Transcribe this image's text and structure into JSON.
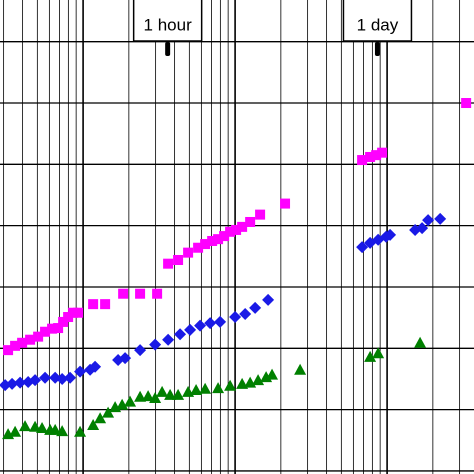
{
  "chart_data": {
    "type": "scatter",
    "xscale": "log",
    "grid": true,
    "xlim": [
      284,
      373000
    ],
    "xticks": [
      300,
      400,
      500,
      600,
      700,
      800,
      900,
      1000,
      2000,
      3000,
      4000,
      5000,
      6000,
      7000,
      8000,
      9000,
      10000,
      20000,
      30000,
      40000,
      50000,
      60000,
      70000,
      80000,
      90000,
      100000,
      200000,
      300000
    ],
    "ylim": [
      -0.05,
      7.68
    ],
    "yticks": [
      0,
      1,
      2,
      3,
      4,
      5,
      6,
      7
    ],
    "annotations": [
      {
        "text": "1 hour",
        "x": 3600
      },
      {
        "text": "1 day",
        "x": 86400
      }
    ],
    "series": [
      {
        "color": "#ff00ff",
        "marker": "square",
        "x": [
          321,
          357,
          397,
          448,
          506,
          562,
          625,
          685,
          739,
          797,
          859,
          927,
          1164,
          1396,
          1834,
          2371,
          3069,
          3625,
          4216,
          4907,
          5710,
          6350,
          7063,
          7728,
          8468,
          9272,
          10153,
          11122,
          12560,
          14604,
          21310,
          68490,
          77300,
          84700,
          92700,
          331100
        ],
        "values": [
          1.97,
          2.04,
          2.09,
          2.14,
          2.19,
          2.27,
          2.32,
          2.33,
          2.43,
          2.51,
          2.58,
          2.58,
          2.72,
          2.72,
          2.89,
          2.89,
          2.89,
          3.38,
          3.44,
          3.56,
          3.64,
          3.7,
          3.75,
          3.78,
          3.83,
          3.9,
          3.93,
          3.98,
          4.06,
          4.18,
          4.36,
          5.07,
          5.12,
          5.15,
          5.19,
          6.0
        ]
      },
      {
        "color": "#1a1ae6",
        "marker": "diamond",
        "x": [
          307,
          341,
          385,
          435,
          483,
          562,
          655,
          728,
          821,
          955,
          1112,
          1199,
          1699,
          1889,
          2371,
          2977,
          3625,
          4345,
          5057,
          5884,
          6852,
          7966,
          10000,
          11646,
          13546,
          16488,
          68490,
          77300,
          87300,
          98500,
          104600,
          152800,
          169900,
          186100,
          223400
        ],
        "values": [
          1.4,
          1.42,
          1.44,
          1.45,
          1.48,
          1.52,
          1.52,
          1.5,
          1.52,
          1.62,
          1.65,
          1.7,
          1.81,
          1.84,
          1.97,
          2.06,
          2.14,
          2.23,
          2.3,
          2.37,
          2.41,
          2.43,
          2.51,
          2.56,
          2.66,
          2.79,
          3.65,
          3.72,
          3.77,
          3.82,
          3.85,
          3.93,
          3.96,
          4.09,
          4.11
        ]
      },
      {
        "color": "#008000",
        "marker": "triangle",
        "x": [
          321,
          357,
          415,
          483,
          537,
          607,
          655,
          728,
          955,
          1164,
          1294,
          1460,
          1624,
          1806,
          2037,
          2371,
          2677,
          2977,
          3309,
          3736,
          4216,
          4907,
          5538,
          6350,
          7728,
          9272,
          11122,
          12560,
          14165,
          15995,
          17500,
          26770,
          77300,
          87300,
          164800
        ],
        "values": [
          0.6,
          0.64,
          0.73,
          0.72,
          0.7,
          0.67,
          0.67,
          0.65,
          0.64,
          0.75,
          0.86,
          0.95,
          1.04,
          1.08,
          1.13,
          1.21,
          1.22,
          1.19,
          1.29,
          1.24,
          1.24,
          1.29,
          1.32,
          1.34,
          1.35,
          1.39,
          1.42,
          1.44,
          1.48,
          1.53,
          1.57,
          1.65,
          1.86,
          1.92,
          2.09
        ]
      }
    ]
  }
}
